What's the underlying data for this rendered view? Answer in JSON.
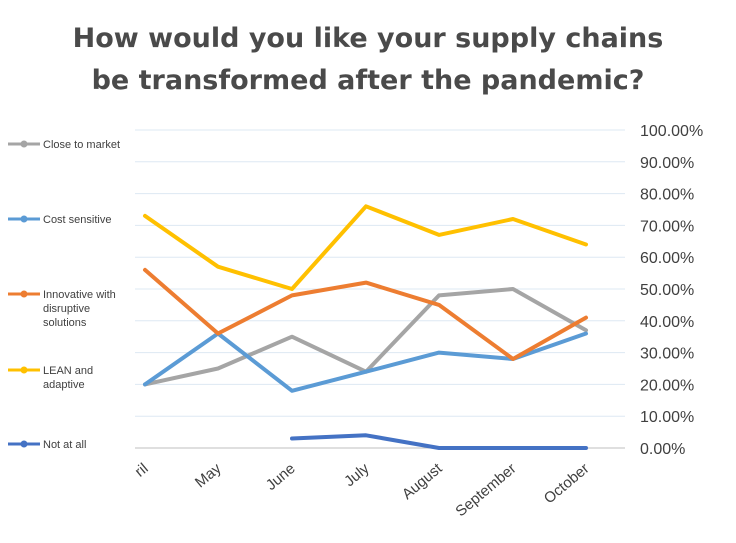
{
  "chart_data": {
    "type": "line",
    "title": [
      "How would you like your supply chains",
      "be transformed after the pandemic?"
    ],
    "categories": [
      "April",
      "May",
      "June",
      "July",
      "August",
      "September",
      "October"
    ],
    "category_labels_shown": [
      "ril",
      "May",
      "June",
      "July",
      "August",
      "September",
      "October"
    ],
    "ylim": [
      0,
      100
    ],
    "y_ticks": [
      "100.00%",
      "90.00%",
      "80.00%",
      "70.00%",
      "60.00%",
      "50.00%",
      "40.00%",
      "30.00%",
      "20.00%",
      "10.00%",
      "0.00%"
    ],
    "y_axis_position": "right",
    "grid": true,
    "legend_position": "left",
    "series": [
      {
        "name": "Close to market",
        "color": "#a5a5a5",
        "values": [
          20,
          25,
          35,
          24,
          48,
          50,
          37
        ]
      },
      {
        "name": "Cost sensitive",
        "color": "#5b9bd5",
        "values": [
          20,
          36,
          18,
          24,
          30,
          28,
          36
        ]
      },
      {
        "name": "Innovative with disruptive solutions",
        "legend_lines": [
          "Innovative with",
          "disruptive",
          "solutions"
        ],
        "color": "#ed7d31",
        "values": [
          56,
          36,
          48,
          52,
          45,
          28,
          41
        ]
      },
      {
        "name": "LEAN and adaptive",
        "legend_lines": [
          "LEAN and",
          "adaptive"
        ],
        "color": "#ffc000",
        "values": [
          73,
          57,
          50,
          76,
          67,
          72,
          64
        ]
      },
      {
        "name": "Not at all",
        "color": "#4472c4",
        "values": [
          null,
          null,
          3,
          4,
          0,
          0,
          0
        ]
      }
    ]
  }
}
